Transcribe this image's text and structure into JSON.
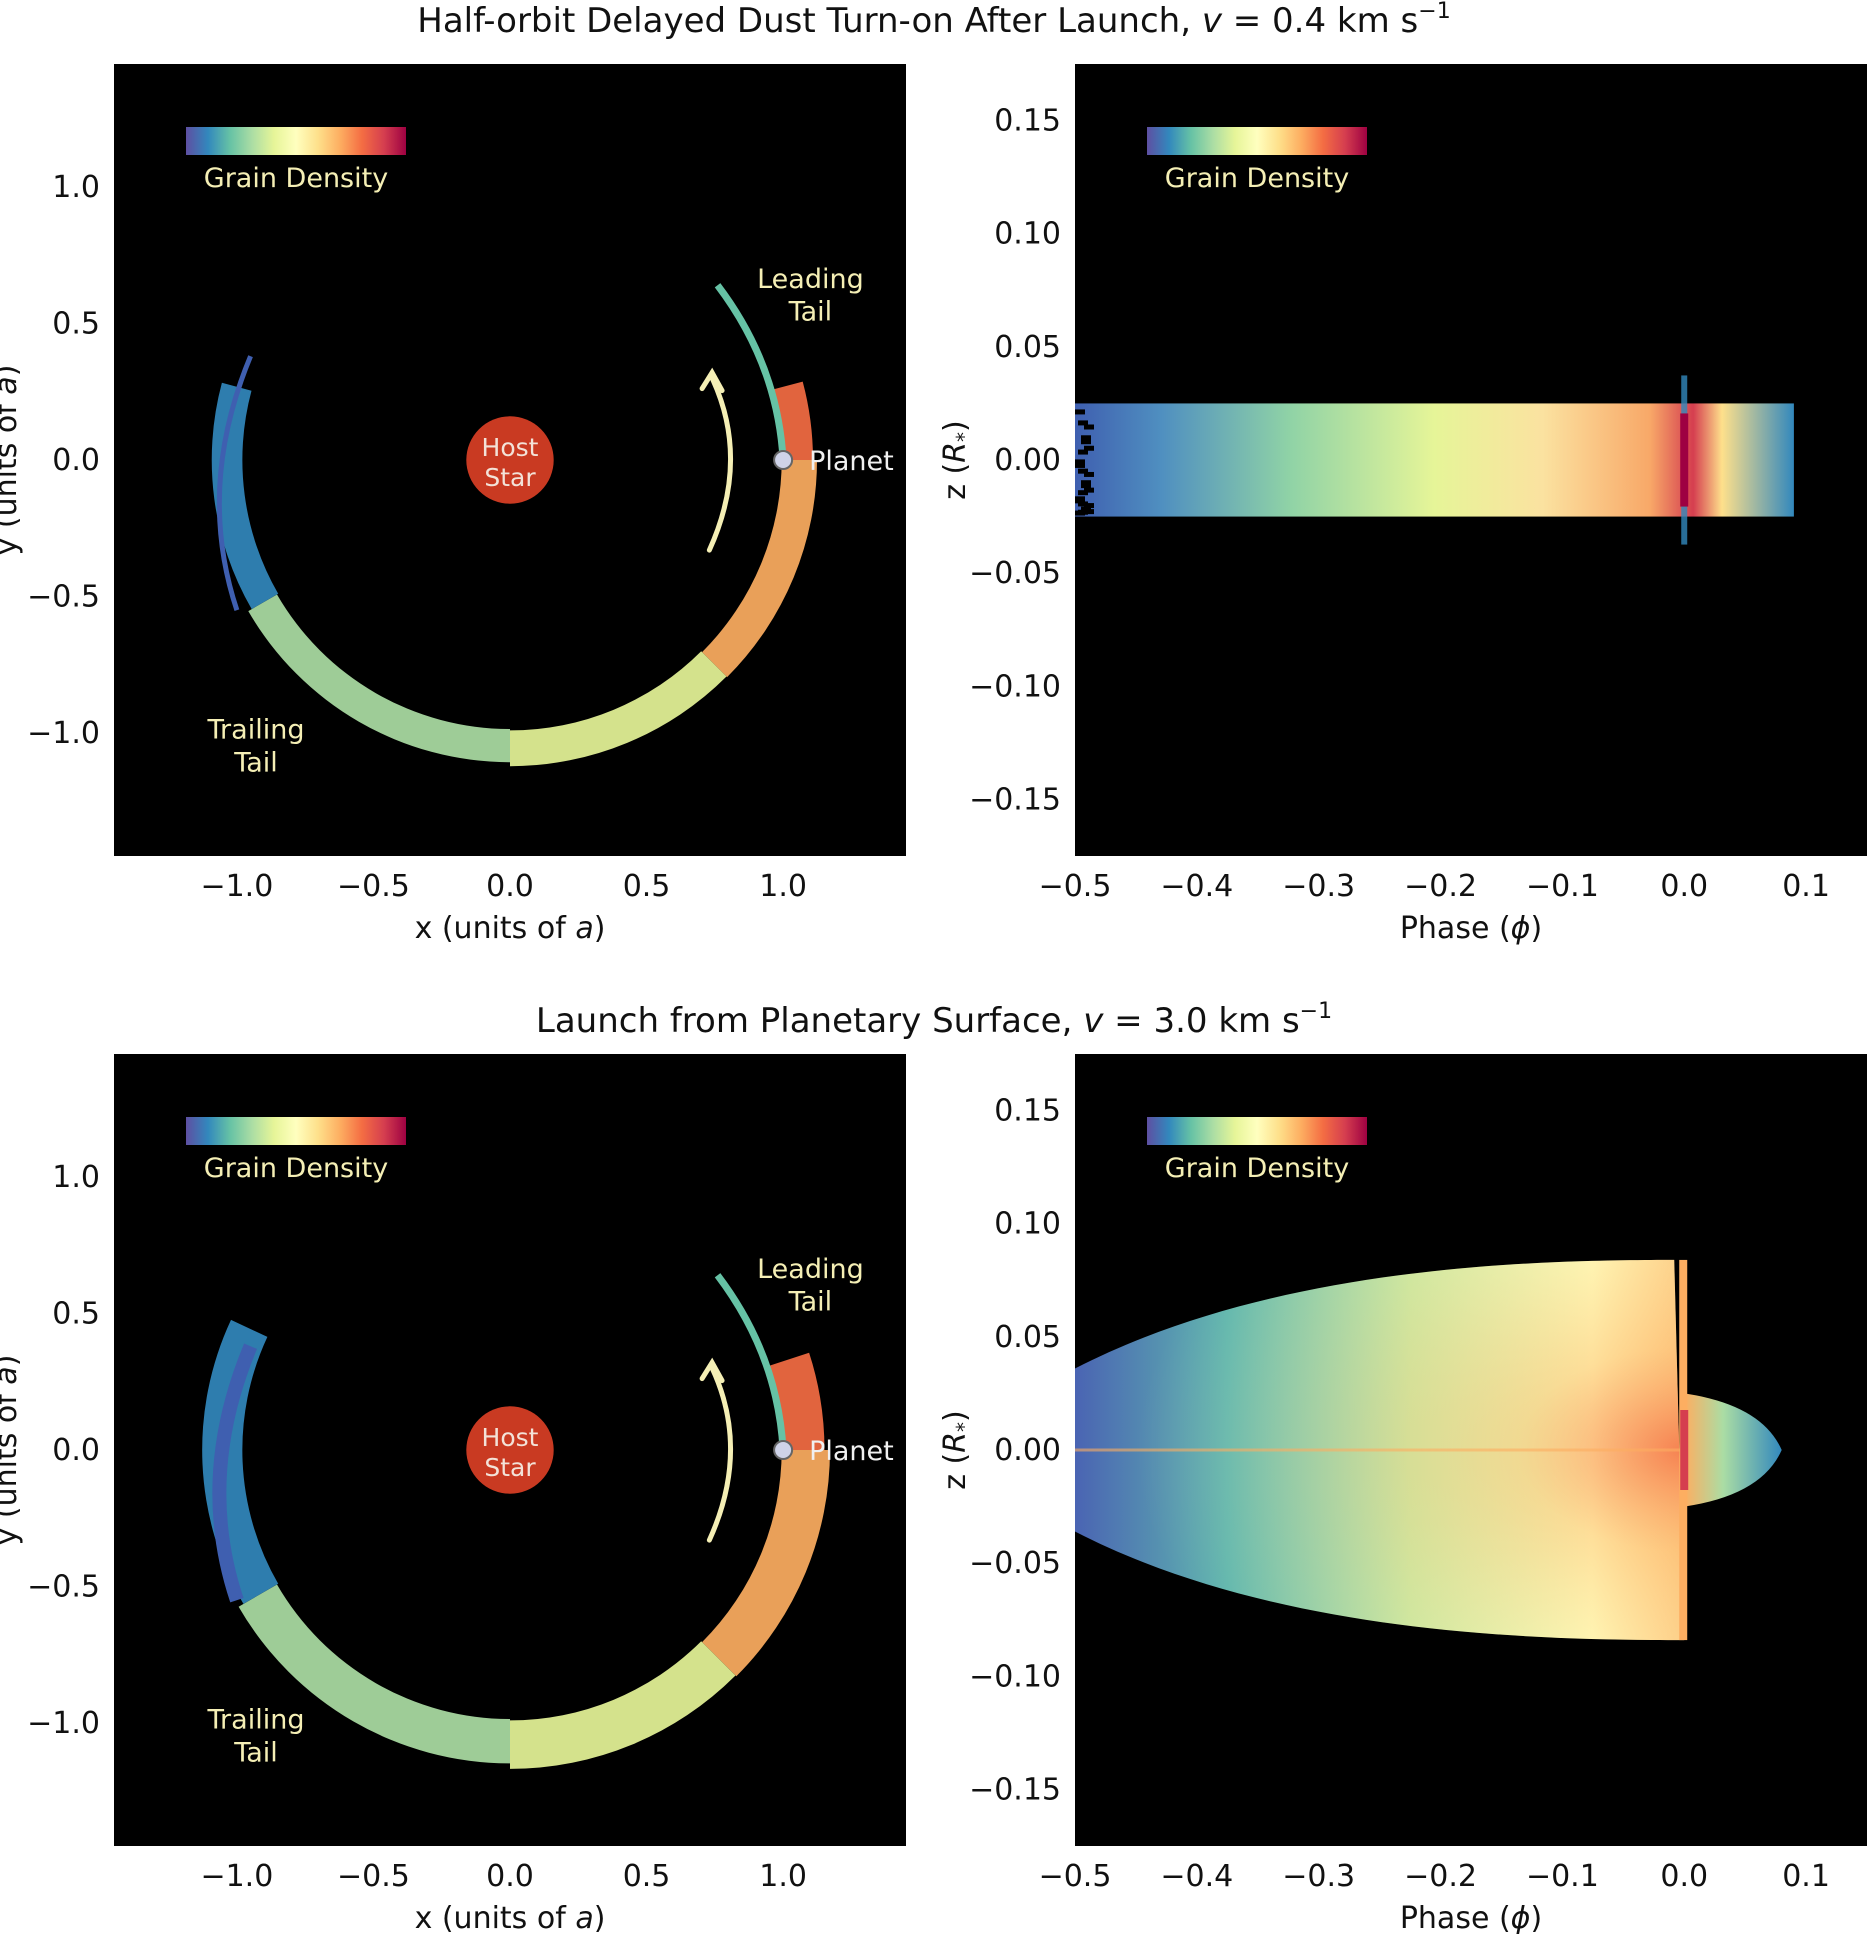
{
  "row_titles": [
    {
      "text": "Half-orbit Delayed Dust Turn-on After Launch, ",
      "v_sym": "v",
      "eq": " = 0.4 km s",
      "sup": "−1"
    },
    {
      "text": "Launch from Planetary Surface, ",
      "v_sym": "v",
      "eq": " = 3.0 km s",
      "sup": "−1"
    }
  ],
  "colors": {
    "background": "#000000",
    "star": "#c93a22",
    "annotation": "#f5efb5",
    "planet": "#cfd3e8"
  },
  "colorbar": {
    "label": "Grain Density",
    "stops": [
      "#5e4fa2",
      "#3288bd",
      "#66c2a5",
      "#abdda4",
      "#e6f598",
      "#ffffbf",
      "#fee08b",
      "#fdae61",
      "#f46d43",
      "#d53e4f",
      "#9e0142"
    ]
  },
  "annotations": {
    "host_star": [
      "Host",
      "Star"
    ],
    "planet": "Planet",
    "leading_tail": [
      "Leading",
      "Tail"
    ],
    "trailing_tail": [
      "Trailing",
      "Tail"
    ]
  },
  "chart_data": [
    {
      "type": "heatmap",
      "panel": "top-left",
      "xlabel": "x (units of a)",
      "ylabel": "y (units of a)",
      "xlim": [
        -1.45,
        1.45
      ],
      "ylim": [
        -1.45,
        1.45
      ],
      "xticks": [
        "−1.0",
        "−0.5",
        "0.0",
        "0.5",
        "1.0"
      ],
      "xtick_values": [
        -1.0,
        -0.5,
        0.0,
        0.5,
        1.0
      ],
      "yticks": [
        "−1.0",
        "−0.5",
        "0.0",
        "0.5",
        "1.0"
      ],
      "ytick_values": [
        -1.0,
        -0.5,
        0.0,
        0.5,
        1.0
      ],
      "star": {
        "x": 0.0,
        "y": 0.0,
        "r": 0.16
      },
      "planet": {
        "x": 1.0,
        "y": 0.0
      },
      "tail_segments": [
        {
          "from_deg": 15,
          "to_deg": 0,
          "color": "#f46d43"
        },
        {
          "from_deg": 0,
          "to_deg": -45,
          "color": "#fdae61"
        },
        {
          "from_deg": -45,
          "to_deg": -90,
          "color": "#e6f598"
        },
        {
          "from_deg": -90,
          "to_deg": -150,
          "color": "#abdda4"
        },
        {
          "from_deg": -150,
          "to_deg": -195,
          "color": "#3288bd"
        }
      ]
    },
    {
      "type": "heatmap",
      "panel": "top-right",
      "xlabel": "Phase (ϕ)",
      "ylabel": "z (R*)",
      "xlim": [
        -0.5,
        0.15
      ],
      "ylim": [
        -0.175,
        0.175
      ],
      "xticks": [
        "−0.5",
        "−0.4",
        "−0.3",
        "−0.2",
        "−0.1",
        "0.0",
        "0.1"
      ],
      "xtick_values": [
        -0.5,
        -0.4,
        -0.3,
        -0.2,
        -0.1,
        0.0,
        0.1
      ],
      "yticks": [
        "−0.15",
        "−0.10",
        "−0.05",
        "0.00",
        "0.05",
        "0.10",
        "0.15"
      ],
      "ytick_values": [
        -0.15,
        -0.1,
        -0.05,
        0.0,
        0.05,
        0.1,
        0.15
      ],
      "band": {
        "x_min": -0.5,
        "x_max": 0.09,
        "z_half_width": 0.025,
        "peak_phase": 0.0
      }
    },
    {
      "type": "heatmap",
      "panel": "bottom-left",
      "xlabel": "x (units of a)",
      "ylabel": "y (units of a)",
      "xlim": [
        -1.45,
        1.45
      ],
      "ylim": [
        -1.45,
        1.45
      ],
      "xticks": [
        "−1.0",
        "−0.5",
        "0.0",
        "0.5",
        "1.0"
      ],
      "xtick_values": [
        -1.0,
        -0.5,
        0.0,
        0.5,
        1.0
      ],
      "yticks": [
        "−1.0",
        "−0.5",
        "0.0",
        "0.5",
        "1.0"
      ],
      "ytick_values": [
        -1.0,
        -0.5,
        0.0,
        0.5,
        1.0
      ],
      "star": {
        "x": 0.0,
        "y": 0.0,
        "r": 0.16
      },
      "planet": {
        "x": 1.0,
        "y": 0.0
      },
      "tail_segments": [
        {
          "from_deg": 18,
          "to_deg": 0,
          "color": "#f46d43"
        },
        {
          "from_deg": 0,
          "to_deg": -45,
          "color": "#fdae61"
        },
        {
          "from_deg": -45,
          "to_deg": -90,
          "color": "#e6f598"
        },
        {
          "from_deg": -90,
          "to_deg": -150,
          "color": "#abdda4"
        },
        {
          "from_deg": -150,
          "to_deg": -205,
          "color": "#3288bd"
        }
      ]
    },
    {
      "type": "heatmap",
      "panel": "bottom-right",
      "xlabel": "Phase (ϕ)",
      "ylabel": "z (R*)",
      "xlim": [
        -0.5,
        0.15
      ],
      "ylim": [
        -0.175,
        0.175
      ],
      "xticks": [
        "−0.5",
        "−0.4",
        "−0.3",
        "−0.2",
        "−0.1",
        "0.0",
        "0.1"
      ],
      "xtick_values": [
        -0.5,
        -0.4,
        -0.3,
        -0.2,
        -0.1,
        0.0,
        0.1
      ],
      "yticks": [
        "−0.15",
        "−0.10",
        "−0.05",
        "0.00",
        "0.05",
        "0.10",
        "0.15"
      ],
      "ytick_values": [
        -0.15,
        -0.1,
        -0.05,
        0.0,
        0.05,
        0.1,
        0.15
      ],
      "cloud": {
        "x_min": -0.5,
        "x_max": 0.0,
        "z_half_width_max": 0.08,
        "tail_x_max": 0.08,
        "tail_z_half_width": 0.025
      }
    }
  ]
}
